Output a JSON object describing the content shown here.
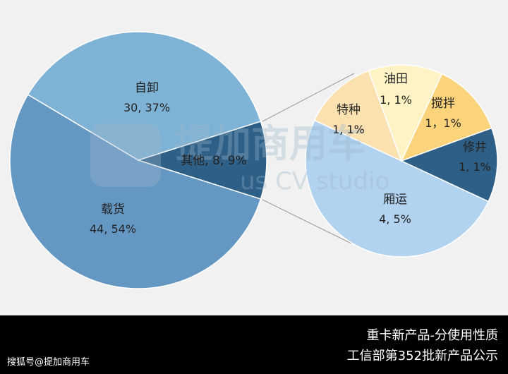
{
  "chart_data": [
    {
      "type": "pie",
      "slices": [
        {
          "name": "载货",
          "value": 44,
          "percent": "54%",
          "color": "#6597c3"
        },
        {
          "name": "自卸",
          "value": 30,
          "percent": "37%",
          "color": "#7fb3d5"
        },
        {
          "name": "其他",
          "value": 8,
          "percent": "9%",
          "color": "#2e5f86"
        }
      ]
    },
    {
      "type": "pie",
      "slices": [
        {
          "name": "厢运",
          "value": 4,
          "percent": "5%",
          "color": "#b1d3ef"
        },
        {
          "name": "特种",
          "value": 1,
          "percent": "1%",
          "color": "#fbe0b0"
        },
        {
          "name": "油田",
          "value": 1,
          "percent": "1%",
          "color": "#fdf3c5"
        },
        {
          "name": "搅拌",
          "value": 1,
          "percent": "1%",
          "color": "#fbd37a"
        },
        {
          "name": "修井",
          "value": 1,
          "percent": "1%",
          "color": "#2e5f86"
        }
      ]
    }
  ],
  "labels": {
    "main": [
      {
        "name": "自卸",
        "line2": "30, 37%"
      },
      {
        "name": "载货",
        "line2": "44, 54%"
      },
      {
        "name": "其他, 8, 9%",
        "line2": ""
      }
    ],
    "detail": [
      {
        "name": "油田",
        "line2": "1, 1%"
      },
      {
        "name": "特种",
        "line2": "1, 1%"
      },
      {
        "name": "搅拌",
        "line2": "1，1%"
      },
      {
        "name": "修井",
        "line2": "1, 1%"
      },
      {
        "name": "厢运",
        "line2": "4, 5%"
      }
    ]
  },
  "watermark": {
    "cn": "提加商用车",
    "en": "us CV studio"
  },
  "footer": {
    "line1": "重卡新产品-分使用性质",
    "line2": "工信部第352批新产品公示",
    "credit": "搜狐号@提加商用车"
  }
}
